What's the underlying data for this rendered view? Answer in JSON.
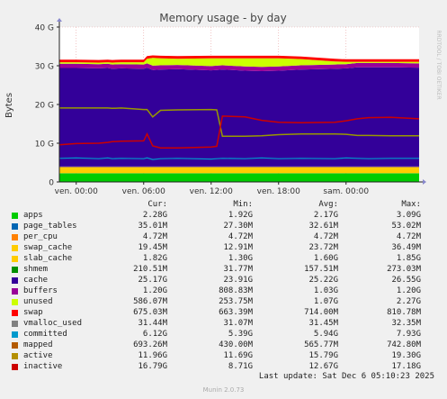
{
  "chart_data": {
    "type": "area",
    "title": "Memory usage - by day",
    "ylabel": "Bytes",
    "side_label": "RRDTOOL / TOBI OETIKER",
    "ylim": [
      0,
      40
    ],
    "y_unit": "G",
    "y_ticks": [
      {
        "value": 0,
        "label": "0"
      },
      {
        "value": 10,
        "label": "10 G"
      },
      {
        "value": 20,
        "label": "20 G"
      },
      {
        "value": 30,
        "label": "30 G"
      },
      {
        "value": 40,
        "label": "40 G"
      }
    ],
    "x_range_hours": [
      -1.5,
      30.5
    ],
    "x_ticks": [
      {
        "at": 0,
        "label": "ven. 00:00"
      },
      {
        "at": 6,
        "label": "ven. 06:00"
      },
      {
        "at": 12,
        "label": "ven. 12:00"
      },
      {
        "at": 18,
        "label": "ven. 18:00"
      },
      {
        "at": 24,
        "label": "sam. 00:00"
      }
    ],
    "x_times": [
      -1.5,
      0,
      2,
      2.8,
      3.2,
      4,
      6,
      6.3,
      6.8,
      7.5,
      9,
      12,
      12.5,
      13,
      15,
      16.5,
      18,
      20,
      23,
      24,
      25,
      26,
      28,
      30.5
    ],
    "stack_bottom_to_top": [
      "apps",
      "page_tables",
      "per_cpu",
      "swap_cache",
      "slab_cache",
      "shmem",
      "cache",
      "buffers",
      "unused",
      "swap"
    ],
    "series": [
      {
        "name": "apps",
        "color": "#00cc00",
        "values": [
          2.2,
          2.2,
          2.2,
          2.2,
          2.2,
          2.2,
          2.2,
          2.2,
          2.2,
          2.2,
          2.2,
          2.2,
          2.2,
          2.2,
          2.2,
          2.2,
          2.2,
          2.2,
          2.2,
          2.2,
          2.2,
          2.2,
          2.2,
          2.2
        ]
      },
      {
        "name": "page_tables",
        "color": "#0066b3",
        "values": [
          0.03,
          0.03,
          0.03,
          0.03,
          0.03,
          0.03,
          0.03,
          0.03,
          0.03,
          0.03,
          0.03,
          0.03,
          0.03,
          0.03,
          0.03,
          0.03,
          0.03,
          0.03,
          0.03,
          0.03,
          0.03,
          0.03,
          0.03,
          0.03
        ]
      },
      {
        "name": "per_cpu",
        "color": "#ff8000",
        "values": [
          0.005,
          0.005,
          0.005,
          0.005,
          0.005,
          0.005,
          0.005,
          0.005,
          0.005,
          0.005,
          0.005,
          0.005,
          0.005,
          0.005,
          0.005,
          0.005,
          0.005,
          0.005,
          0.005,
          0.005,
          0.005,
          0.005,
          0.005,
          0.005
        ]
      },
      {
        "name": "swap_cache",
        "color": "#ffcc00",
        "values": [
          0.02,
          0.02,
          0.02,
          0.02,
          0.02,
          0.02,
          0.02,
          0.02,
          0.02,
          0.02,
          0.02,
          0.02,
          0.02,
          0.02,
          0.02,
          0.02,
          0.02,
          0.02,
          0.02,
          0.02,
          0.02,
          0.02,
          0.02,
          0.02
        ]
      },
      {
        "name": "slab_cache",
        "color": "#ffcc00",
        "values": [
          1.6,
          1.6,
          1.6,
          1.6,
          1.6,
          1.6,
          1.6,
          1.6,
          1.6,
          1.6,
          1.6,
          1.6,
          1.6,
          1.6,
          1.6,
          1.6,
          1.6,
          1.6,
          1.6,
          1.6,
          1.6,
          1.6,
          1.6,
          1.6
        ]
      },
      {
        "name": "shmem",
        "color": "#330099",
        "values": [
          0.16,
          0.16,
          0.16,
          0.16,
          0.16,
          0.16,
          0.16,
          0.16,
          0.16,
          0.16,
          0.16,
          0.16,
          0.16,
          0.16,
          0.16,
          0.16,
          0.16,
          0.16,
          0.16,
          0.16,
          0.16,
          0.16,
          0.16,
          0.16
        ]
      },
      {
        "name": "cache",
        "color": "#330099",
        "values": [
          25.4,
          25.4,
          25.3,
          25.4,
          25.2,
          25.3,
          25.2,
          25.5,
          24.9,
          25.0,
          25.1,
          24.8,
          24.9,
          25.0,
          24.7,
          24.6,
          24.7,
          25.0,
          25.2,
          25.3,
          25.6,
          25.6,
          25.6,
          25.5
        ]
      },
      {
        "name": "buffers",
        "color": "#990099",
        "values": [
          1.1,
          1.1,
          1.1,
          1.1,
          1.1,
          1.1,
          1.1,
          1.1,
          1.1,
          1.1,
          1.1,
          1.1,
          1.1,
          1.1,
          1.1,
          1.1,
          1.1,
          1.1,
          1.1,
          1.1,
          1.1,
          1.1,
          1.1,
          1.1
        ]
      },
      {
        "name": "unused",
        "color": "#ccff00",
        "values": [
          0.4,
          0.4,
          0.4,
          0.4,
          0.5,
          0.5,
          0.6,
          1.2,
          2.0,
          1.8,
          1.6,
          2.0,
          1.9,
          1.8,
          2.1,
          2.2,
          2.1,
          1.6,
          0.8,
          0.6,
          0.3,
          0.3,
          0.3,
          0.4
        ]
      },
      {
        "name": "swap",
        "color": "#ff0000",
        "values": [
          0.67,
          0.67,
          0.67,
          0.67,
          0.67,
          0.67,
          0.67,
          0.67,
          0.67,
          0.67,
          0.67,
          0.67,
          0.67,
          0.67,
          0.67,
          0.67,
          0.67,
          0.67,
          0.67,
          0.67,
          0.67,
          0.67,
          0.67,
          0.67
        ]
      }
    ],
    "lines": [
      {
        "name": "committed",
        "color": "#0099cc",
        "width": 1.2,
        "values": [
          6.1,
          6.2,
          6.0,
          6.2,
          6.0,
          6.1,
          6.0,
          6.2,
          5.8,
          6.0,
          6.1,
          5.9,
          6.0,
          6.1,
          6.0,
          6.2,
          6.0,
          6.1,
          6.0,
          6.2,
          6.1,
          6.0,
          6.1,
          6.1
        ]
      },
      {
        "name": "active",
        "color": "#999900",
        "width": 1.5,
        "values": [
          19.1,
          19.1,
          19.1,
          19.1,
          19.0,
          19.1,
          18.7,
          18.7,
          16.8,
          18.5,
          18.6,
          18.7,
          18.6,
          11.8,
          11.8,
          11.9,
          12.2,
          12.4,
          12.4,
          12.3,
          12.0,
          12.0,
          11.9,
          11.9
        ]
      },
      {
        "name": "inactive",
        "color": "#cc0000",
        "width": 1.5,
        "values": [
          9.6,
          9.9,
          10.0,
          10.2,
          10.4,
          10.5,
          10.6,
          12.4,
          9.3,
          8.8,
          8.8,
          9.0,
          9.2,
          17.0,
          16.8,
          15.9,
          15.4,
          15.3,
          15.4,
          15.8,
          16.3,
          16.6,
          16.7,
          16.3
        ]
      }
    ]
  },
  "legend": {
    "headers": [
      "Cur:",
      "Min:",
      "Avg:",
      "Max:"
    ],
    "rows": [
      {
        "name": "apps",
        "color": "#00cc00",
        "cur": "2.28G",
        "min": "1.92G",
        "avg": "2.17G",
        "max": "3.09G"
      },
      {
        "name": "page_tables",
        "color": "#0066b3",
        "cur": "35.01M",
        "min": "27.30M",
        "avg": "32.61M",
        "max": "53.02M"
      },
      {
        "name": "per_cpu",
        "color": "#ff8000",
        "cur": "4.72M",
        "min": "4.72M",
        "avg": "4.72M",
        "max": "4.72M"
      },
      {
        "name": "swap_cache",
        "color": "#ffcc00",
        "cur": "19.45M",
        "min": "12.91M",
        "avg": "23.72M",
        "max": "36.49M"
      },
      {
        "name": "slab_cache",
        "color": "#ffcc00",
        "cur": "1.82G",
        "min": "1.30G",
        "avg": "1.60G",
        "max": "1.85G"
      },
      {
        "name": "shmem",
        "color": "#008f00",
        "cur": "210.51M",
        "min": "31.77M",
        "avg": "157.51M",
        "max": "273.03M"
      },
      {
        "name": "cache",
        "color": "#330099",
        "cur": "25.17G",
        "min": "23.91G",
        "avg": "25.22G",
        "max": "26.55G"
      },
      {
        "name": "buffers",
        "color": "#990099",
        "cur": "1.20G",
        "min": "808.83M",
        "avg": "1.03G",
        "max": "1.20G"
      },
      {
        "name": "unused",
        "color": "#ccff00",
        "cur": "586.07M",
        "min": "253.75M",
        "avg": "1.07G",
        "max": "2.27G"
      },
      {
        "name": "swap",
        "color": "#ff0000",
        "cur": "675.03M",
        "min": "663.39M",
        "avg": "714.00M",
        "max": "810.78M"
      },
      {
        "name": "vmalloc_used",
        "color": "#808080",
        "cur": "31.44M",
        "min": "31.07M",
        "avg": "31.45M",
        "max": "32.35M"
      },
      {
        "name": "committed",
        "color": "#0099cc",
        "cur": "6.12G",
        "min": "5.39G",
        "avg": "5.94G",
        "max": "7.93G"
      },
      {
        "name": "mapped",
        "color": "#b35a00",
        "cur": "693.26M",
        "min": "430.00M",
        "avg": "565.77M",
        "max": "742.80M"
      },
      {
        "name": "active",
        "color": "#b38f00",
        "cur": "11.96G",
        "min": "11.69G",
        "avg": "15.79G",
        "max": "19.30G"
      },
      {
        "name": "inactive",
        "color": "#cc0000",
        "cur": "16.79G",
        "min": "8.71G",
        "avg": "12.67G",
        "max": "17.18G"
      }
    ]
  },
  "last_update": "Last update: Sat Dec  6 05:10:23 2025",
  "footer": "Munin 2.0.73"
}
